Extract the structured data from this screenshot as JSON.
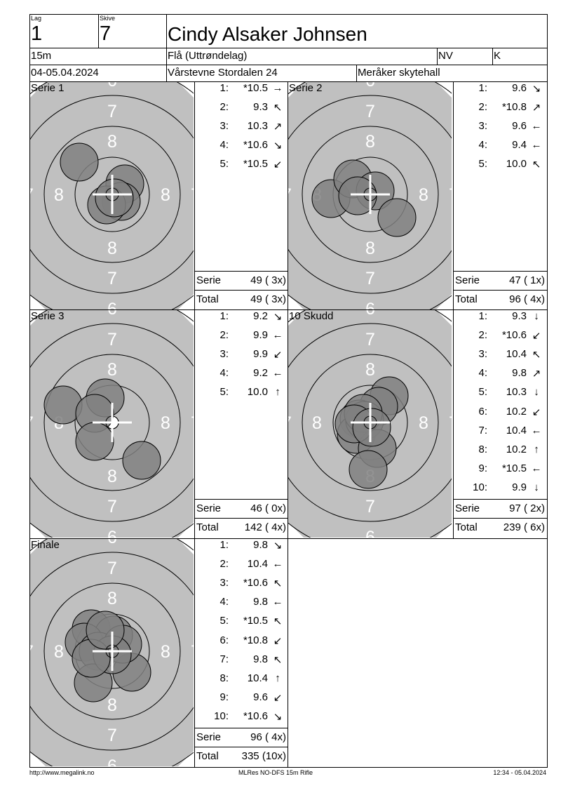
{
  "header": {
    "lag_label": "Lag",
    "lag_value": "1",
    "skive_label": "Skive",
    "skive_value": "7",
    "name": "Cindy Alsaker Johnsen",
    "distance": "15m",
    "club": "Flå (Uttrøndelag)",
    "region": "NV",
    "class": "K",
    "date": "04-05.04.2024",
    "event": "Vårstevne Stordalen 24",
    "venue": "Meråker skytehall"
  },
  "target_rings": {
    "ring_numbers": [
      "6",
      "7",
      "8"
    ],
    "target_color": "#c0c0c0",
    "shot_color": "#808080"
  },
  "panels": [
    {
      "title": "Serie 1",
      "shots": [
        {
          "n": "1:",
          "v": "*10.5",
          "dir": "→"
        },
        {
          "n": "2:",
          "v": "9.3",
          "dir": "↖"
        },
        {
          "n": "3:",
          "v": "10.3",
          "dir": "↗"
        },
        {
          "n": "4:",
          "v": "*10.6",
          "dir": "↘"
        },
        {
          "n": "5:",
          "v": "*10.5",
          "dir": "↙"
        }
      ],
      "serie_label": "Serie",
      "serie_value": "49 ( 3x)",
      "total_label": "Total",
      "total_value": "49 ( 3x)"
    },
    {
      "title": "Serie 2",
      "shots": [
        {
          "n": "1:",
          "v": "9.6",
          "dir": "↘"
        },
        {
          "n": "2:",
          "v": "*10.8",
          "dir": "↗"
        },
        {
          "n": "3:",
          "v": "9.6",
          "dir": "←"
        },
        {
          "n": "4:",
          "v": "9.4",
          "dir": "←"
        },
        {
          "n": "5:",
          "v": "10.0",
          "dir": "↖"
        }
      ],
      "serie_label": "Serie",
      "serie_value": "47 ( 1x)",
      "total_label": "Total",
      "total_value": "96 ( 4x)"
    },
    {
      "title": "Serie 3",
      "shots": [
        {
          "n": "1:",
          "v": "9.2",
          "dir": "↘"
        },
        {
          "n": "2:",
          "v": "9.9",
          "dir": "←"
        },
        {
          "n": "3:",
          "v": "9.9",
          "dir": "↙"
        },
        {
          "n": "4:",
          "v": "9.2",
          "dir": "←"
        },
        {
          "n": "5:",
          "v": "10.0",
          "dir": "↑"
        }
      ],
      "serie_label": "Serie",
      "serie_value": "46 ( 0x)",
      "total_label": "Total",
      "total_value": "142 ( 4x)"
    },
    {
      "title": "10 Skudd",
      "shots": [
        {
          "n": "1:",
          "v": "9.3",
          "dir": "↓"
        },
        {
          "n": "2:",
          "v": "*10.6",
          "dir": "↙"
        },
        {
          "n": "3:",
          "v": "10.4",
          "dir": "↖"
        },
        {
          "n": "4:",
          "v": "9.8",
          "dir": "↗"
        },
        {
          "n": "5:",
          "v": "10.3",
          "dir": "↓"
        },
        {
          "n": "6:",
          "v": "10.2",
          "dir": "↙"
        },
        {
          "n": "7:",
          "v": "10.4",
          "dir": "←"
        },
        {
          "n": "8:",
          "v": "10.2",
          "dir": "↑"
        },
        {
          "n": "9:",
          "v": "*10.5",
          "dir": "←"
        },
        {
          "n": "10:",
          "v": "9.9",
          "dir": "↓"
        }
      ],
      "serie_label": "Serie",
      "serie_value": "97 ( 2x)",
      "total_label": "Total",
      "total_value": "239 ( 6x)"
    },
    {
      "title": "Finale",
      "shots": [
        {
          "n": "1:",
          "v": "9.8",
          "dir": "↘"
        },
        {
          "n": "2:",
          "v": "10.4",
          "dir": "←"
        },
        {
          "n": "3:",
          "v": "*10.6",
          "dir": "↖"
        },
        {
          "n": "4:",
          "v": "9.8",
          "dir": "←"
        },
        {
          "n": "5:",
          "v": "*10.5",
          "dir": "↖"
        },
        {
          "n": "6:",
          "v": "*10.8",
          "dir": "↙"
        },
        {
          "n": "7:",
          "v": "9.8",
          "dir": "↖"
        },
        {
          "n": "8:",
          "v": "10.4",
          "dir": "↑"
        },
        {
          "n": "9:",
          "v": "9.6",
          "dir": "↙"
        },
        {
          "n": "10:",
          "v": "*10.6",
          "dir": "↘"
        }
      ],
      "serie_label": "Serie",
      "serie_value": "96 ( 4x)",
      "total_label": "Total",
      "total_value": "335 (10x)"
    }
  ],
  "footer": {
    "website": "http://www.megalink.no",
    "software": "MLRes NO-DFS 15m Rifle",
    "printed": "12:34 - 05.04.2024"
  }
}
